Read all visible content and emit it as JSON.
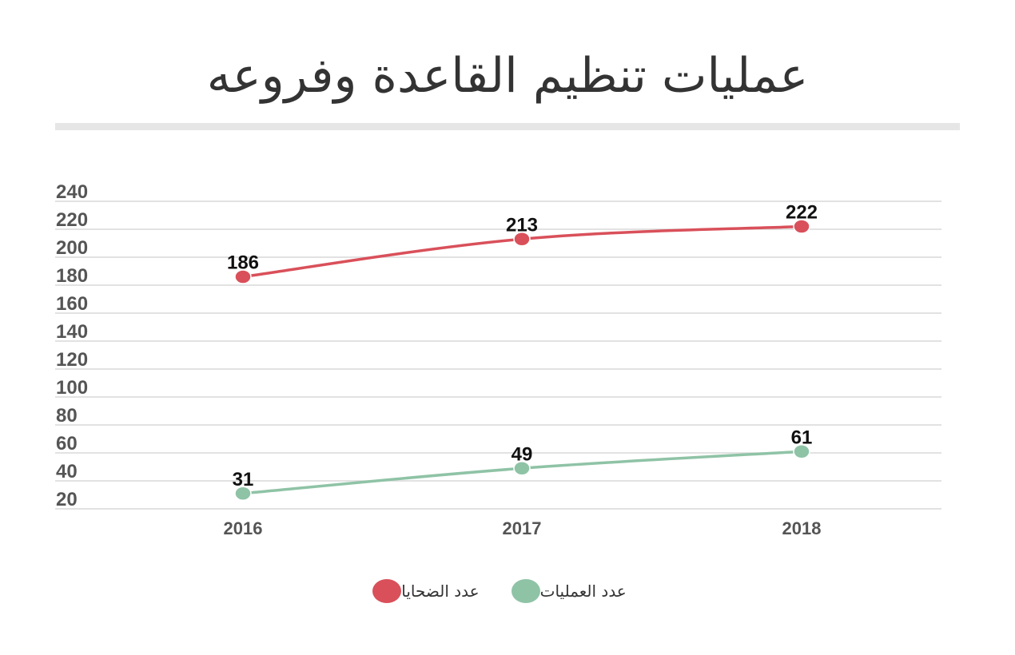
{
  "title": "عمليات تنظيم القاعدة وفروعه",
  "chart_data": {
    "type": "line",
    "title": "عمليات تنظيم القاعدة وفروعه",
    "x": [
      "2016",
      "2017",
      "2018"
    ],
    "y_ticks": [
      "20",
      "40",
      "60",
      "80",
      "100",
      "120",
      "140",
      "160",
      "180",
      "200",
      "220",
      "240"
    ],
    "ylim": [
      20,
      240
    ],
    "grid": true,
    "legend_position": "bottom-center",
    "series": [
      {
        "name": "عدد الضحايا",
        "color": "#d9505a",
        "values": [
          186,
          213,
          222
        ]
      },
      {
        "name": "عدد العمليات",
        "color": "#8fc3a6",
        "values": [
          31,
          49,
          61
        ]
      }
    ]
  }
}
